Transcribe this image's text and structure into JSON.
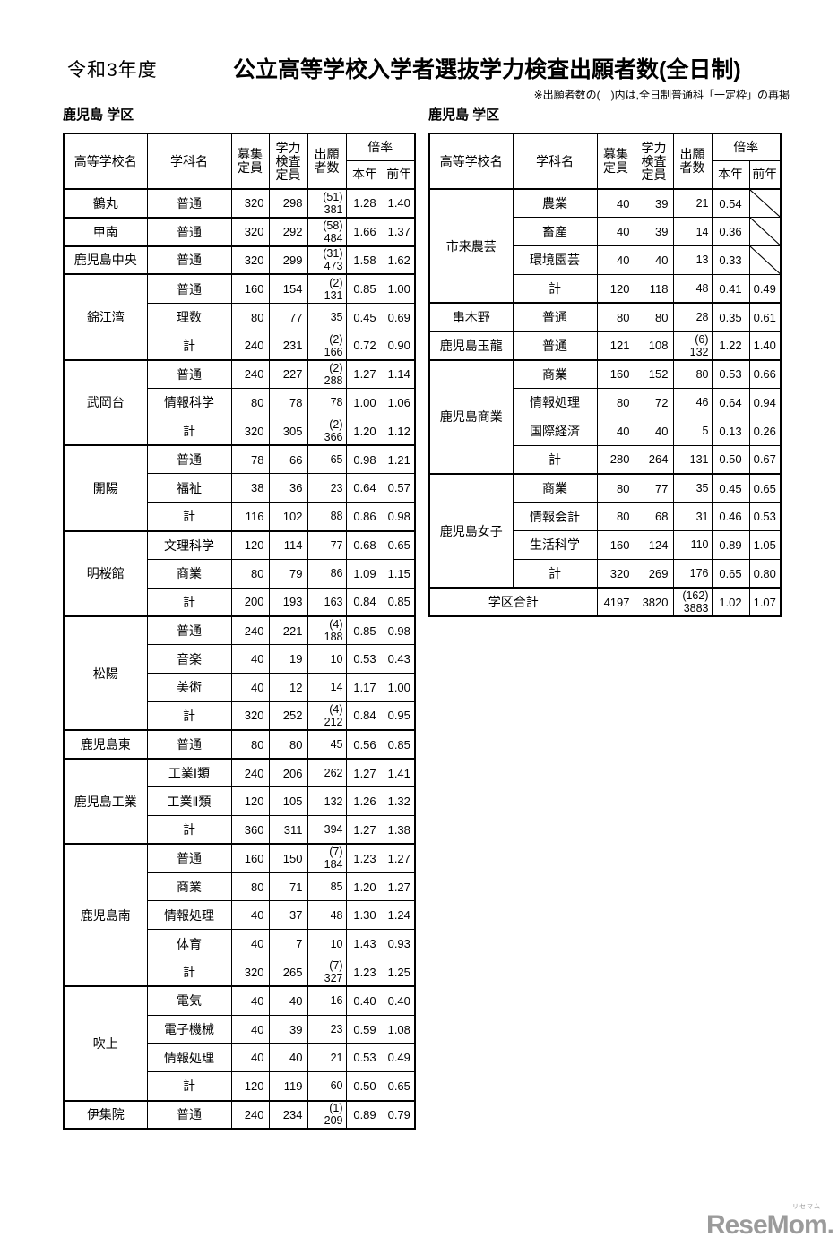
{
  "page": {
    "era_label": "令和3年度",
    "title": "公立高等学校入学者選抜学力検査出願者数(全日制)",
    "note": "※出願者数の(　)内は,全日制普通科「一定枠」の再掲",
    "logo": "ReseMom.",
    "logo_ruby": "リセマム",
    "logo_color": "#9b9b9b",
    "border_color": "#000000"
  },
  "header_labels": {
    "school": "高等学校名",
    "subject": "学科名",
    "recruit": "募集\n定員",
    "exam": "学力\n検査\n定員",
    "applicants": "出願\n者数",
    "ratio": "倍率",
    "current": "本年",
    "previous": "前年"
  },
  "left_table": {
    "region": "鹿児島 学区",
    "schools": [
      {
        "name": "鶴丸",
        "rows": [
          {
            "subject": "普通",
            "recruit": "320",
            "exam": "298",
            "app_paren": "(51)",
            "app": "381",
            "cur": "1.28",
            "prev": "1.40"
          }
        ]
      },
      {
        "name": "甲南",
        "rows": [
          {
            "subject": "普通",
            "recruit": "320",
            "exam": "292",
            "app_paren": "(58)",
            "app": "484",
            "cur": "1.66",
            "prev": "1.37"
          }
        ]
      },
      {
        "name": "鹿児島中央",
        "rows": [
          {
            "subject": "普通",
            "recruit": "320",
            "exam": "299",
            "app_paren": "(31)",
            "app": "473",
            "cur": "1.58",
            "prev": "1.62"
          }
        ]
      },
      {
        "name": "錦江湾",
        "rows": [
          {
            "subject": "普通",
            "recruit": "160",
            "exam": "154",
            "app_paren": "(2)",
            "app": "131",
            "cur": "0.85",
            "prev": "1.00"
          },
          {
            "subject": "理数",
            "recruit": "80",
            "exam": "77",
            "app_paren": "",
            "app": "35",
            "cur": "0.45",
            "prev": "0.69"
          },
          {
            "subject": "計",
            "recruit": "240",
            "exam": "231",
            "app_paren": "(2)",
            "app": "166",
            "cur": "0.72",
            "prev": "0.90"
          }
        ]
      },
      {
        "name": "武岡台",
        "rows": [
          {
            "subject": "普通",
            "recruit": "240",
            "exam": "227",
            "app_paren": "(2)",
            "app": "288",
            "cur": "1.27",
            "prev": "1.14"
          },
          {
            "subject": "情報科学",
            "recruit": "80",
            "exam": "78",
            "app_paren": "",
            "app": "78",
            "cur": "1.00",
            "prev": "1.06"
          },
          {
            "subject": "計",
            "recruit": "320",
            "exam": "305",
            "app_paren": "(2)",
            "app": "366",
            "cur": "1.20",
            "prev": "1.12"
          }
        ]
      },
      {
        "name": "開陽",
        "rows": [
          {
            "subject": "普通",
            "recruit": "78",
            "exam": "66",
            "app_paren": "",
            "app": "65",
            "cur": "0.98",
            "prev": "1.21"
          },
          {
            "subject": "福祉",
            "recruit": "38",
            "exam": "36",
            "app_paren": "",
            "app": "23",
            "cur": "0.64",
            "prev": "0.57"
          },
          {
            "subject": "計",
            "recruit": "116",
            "exam": "102",
            "app_paren": "",
            "app": "88",
            "cur": "0.86",
            "prev": "0.98"
          }
        ]
      },
      {
        "name": "明桜館",
        "rows": [
          {
            "subject": "文理科学",
            "recruit": "120",
            "exam": "114",
            "app_paren": "",
            "app": "77",
            "cur": "0.68",
            "prev": "0.65"
          },
          {
            "subject": "商業",
            "recruit": "80",
            "exam": "79",
            "app_paren": "",
            "app": "86",
            "cur": "1.09",
            "prev": "1.15"
          },
          {
            "subject": "計",
            "recruit": "200",
            "exam": "193",
            "app_paren": "",
            "app": "163",
            "cur": "0.84",
            "prev": "0.85"
          }
        ]
      },
      {
        "name": "松陽",
        "rows": [
          {
            "subject": "普通",
            "recruit": "240",
            "exam": "221",
            "app_paren": "(4)",
            "app": "188",
            "cur": "0.85",
            "prev": "0.98"
          },
          {
            "subject": "音楽",
            "recruit": "40",
            "exam": "19",
            "app_paren": "",
            "app": "10",
            "cur": "0.53",
            "prev": "0.43"
          },
          {
            "subject": "美術",
            "recruit": "40",
            "exam": "12",
            "app_paren": "",
            "app": "14",
            "cur": "1.17",
            "prev": "1.00"
          },
          {
            "subject": "計",
            "recruit": "320",
            "exam": "252",
            "app_paren": "(4)",
            "app": "212",
            "cur": "0.84",
            "prev": "0.95"
          }
        ]
      },
      {
        "name": "鹿児島東",
        "rows": [
          {
            "subject": "普通",
            "recruit": "80",
            "exam": "80",
            "app_paren": "",
            "app": "45",
            "cur": "0.56",
            "prev": "0.85"
          }
        ]
      },
      {
        "name": "鹿児島工業",
        "rows": [
          {
            "subject": "工業Ⅰ類",
            "recruit": "240",
            "exam": "206",
            "app_paren": "",
            "app": "262",
            "cur": "1.27",
            "prev": "1.41"
          },
          {
            "subject": "工業Ⅱ類",
            "recruit": "120",
            "exam": "105",
            "app_paren": "",
            "app": "132",
            "cur": "1.26",
            "prev": "1.32"
          },
          {
            "subject": "計",
            "recruit": "360",
            "exam": "311",
            "app_paren": "",
            "app": "394",
            "cur": "1.27",
            "prev": "1.38"
          }
        ]
      },
      {
        "name": "鹿児島南",
        "rows": [
          {
            "subject": "普通",
            "recruit": "160",
            "exam": "150",
            "app_paren": "(7)",
            "app": "184",
            "cur": "1.23",
            "prev": "1.27"
          },
          {
            "subject": "商業",
            "recruit": "80",
            "exam": "71",
            "app_paren": "",
            "app": "85",
            "cur": "1.20",
            "prev": "1.27"
          },
          {
            "subject": "情報処理",
            "recruit": "40",
            "exam": "37",
            "app_paren": "",
            "app": "48",
            "cur": "1.30",
            "prev": "1.24"
          },
          {
            "subject": "体育",
            "recruit": "40",
            "exam": "7",
            "app_paren": "",
            "app": "10",
            "cur": "1.43",
            "prev": "0.93"
          },
          {
            "subject": "計",
            "recruit": "320",
            "exam": "265",
            "app_paren": "(7)",
            "app": "327",
            "cur": "1.23",
            "prev": "1.25"
          }
        ]
      },
      {
        "name": "吹上",
        "rows": [
          {
            "subject": "電気",
            "recruit": "40",
            "exam": "40",
            "app_paren": "",
            "app": "16",
            "cur": "0.40",
            "prev": "0.40"
          },
          {
            "subject": "電子機械",
            "recruit": "40",
            "exam": "39",
            "app_paren": "",
            "app": "23",
            "cur": "0.59",
            "prev": "1.08"
          },
          {
            "subject": "情報処理",
            "recruit": "40",
            "exam": "40",
            "app_paren": "",
            "app": "21",
            "cur": "0.53",
            "prev": "0.49"
          },
          {
            "subject": "計",
            "recruit": "120",
            "exam": "119",
            "app_paren": "",
            "app": "60",
            "cur": "0.50",
            "prev": "0.65"
          }
        ]
      },
      {
        "name": "伊集院",
        "rows": [
          {
            "subject": "普通",
            "recruit": "240",
            "exam": "234",
            "app_paren": "(1)",
            "app": "209",
            "cur": "0.89",
            "prev": "0.79"
          }
        ]
      }
    ]
  },
  "right_table": {
    "region": "鹿児島 学区",
    "schools": [
      {
        "name": "市来農芸",
        "rows": [
          {
            "subject": "農業",
            "recruit": "40",
            "exam": "39",
            "app_paren": "",
            "app": "21",
            "cur": "0.54",
            "prev": "",
            "prev_diag": true
          },
          {
            "subject": "畜産",
            "recruit": "40",
            "exam": "39",
            "app_paren": "",
            "app": "14",
            "cur": "0.36",
            "prev": "",
            "prev_diag": true
          },
          {
            "subject": "環境園芸",
            "recruit": "40",
            "exam": "40",
            "app_paren": "",
            "app": "13",
            "cur": "0.33",
            "prev": "",
            "prev_diag": true
          },
          {
            "subject": "計",
            "recruit": "120",
            "exam": "118",
            "app_paren": "",
            "app": "48",
            "cur": "0.41",
            "prev": "0.49"
          }
        ]
      },
      {
        "name": "串木野",
        "rows": [
          {
            "subject": "普通",
            "recruit": "80",
            "exam": "80",
            "app_paren": "",
            "app": "28",
            "cur": "0.35",
            "prev": "0.61"
          }
        ]
      },
      {
        "name": "鹿児島玉龍",
        "rows": [
          {
            "subject": "普通",
            "recruit": "121",
            "exam": "108",
            "app_paren": "(6)",
            "app": "132",
            "cur": "1.22",
            "prev": "1.40"
          }
        ]
      },
      {
        "name": "鹿児島商業",
        "rows": [
          {
            "subject": "商業",
            "recruit": "160",
            "exam": "152",
            "app_paren": "",
            "app": "80",
            "cur": "0.53",
            "prev": "0.66"
          },
          {
            "subject": "情報処理",
            "recruit": "80",
            "exam": "72",
            "app_paren": "",
            "app": "46",
            "cur": "0.64",
            "prev": "0.94"
          },
          {
            "subject": "国際経済",
            "recruit": "40",
            "exam": "40",
            "app_paren": "",
            "app": "5",
            "cur": "0.13",
            "prev": "0.26"
          },
          {
            "subject": "計",
            "recruit": "280",
            "exam": "264",
            "app_paren": "",
            "app": "131",
            "cur": "0.50",
            "prev": "0.67"
          }
        ]
      },
      {
        "name": "鹿児島女子",
        "rows": [
          {
            "subject": "商業",
            "recruit": "80",
            "exam": "77",
            "app_paren": "",
            "app": "35",
            "cur": "0.45",
            "prev": "0.65"
          },
          {
            "subject": "情報会計",
            "recruit": "80",
            "exam": "68",
            "app_paren": "",
            "app": "31",
            "cur": "0.46",
            "prev": "0.53"
          },
          {
            "subject": "生活科学",
            "recruit": "160",
            "exam": "124",
            "app_paren": "",
            "app": "110",
            "cur": "0.89",
            "prev": "1.05"
          },
          {
            "subject": "計",
            "recruit": "320",
            "exam": "269",
            "app_paren": "",
            "app": "176",
            "cur": "0.65",
            "prev": "0.80"
          }
        ]
      }
    ],
    "total": {
      "label": "学区合計",
      "recruit": "4197",
      "exam": "3820",
      "app_paren": "(162)",
      "app": "3883",
      "cur": "1.02",
      "prev": "1.07"
    }
  }
}
